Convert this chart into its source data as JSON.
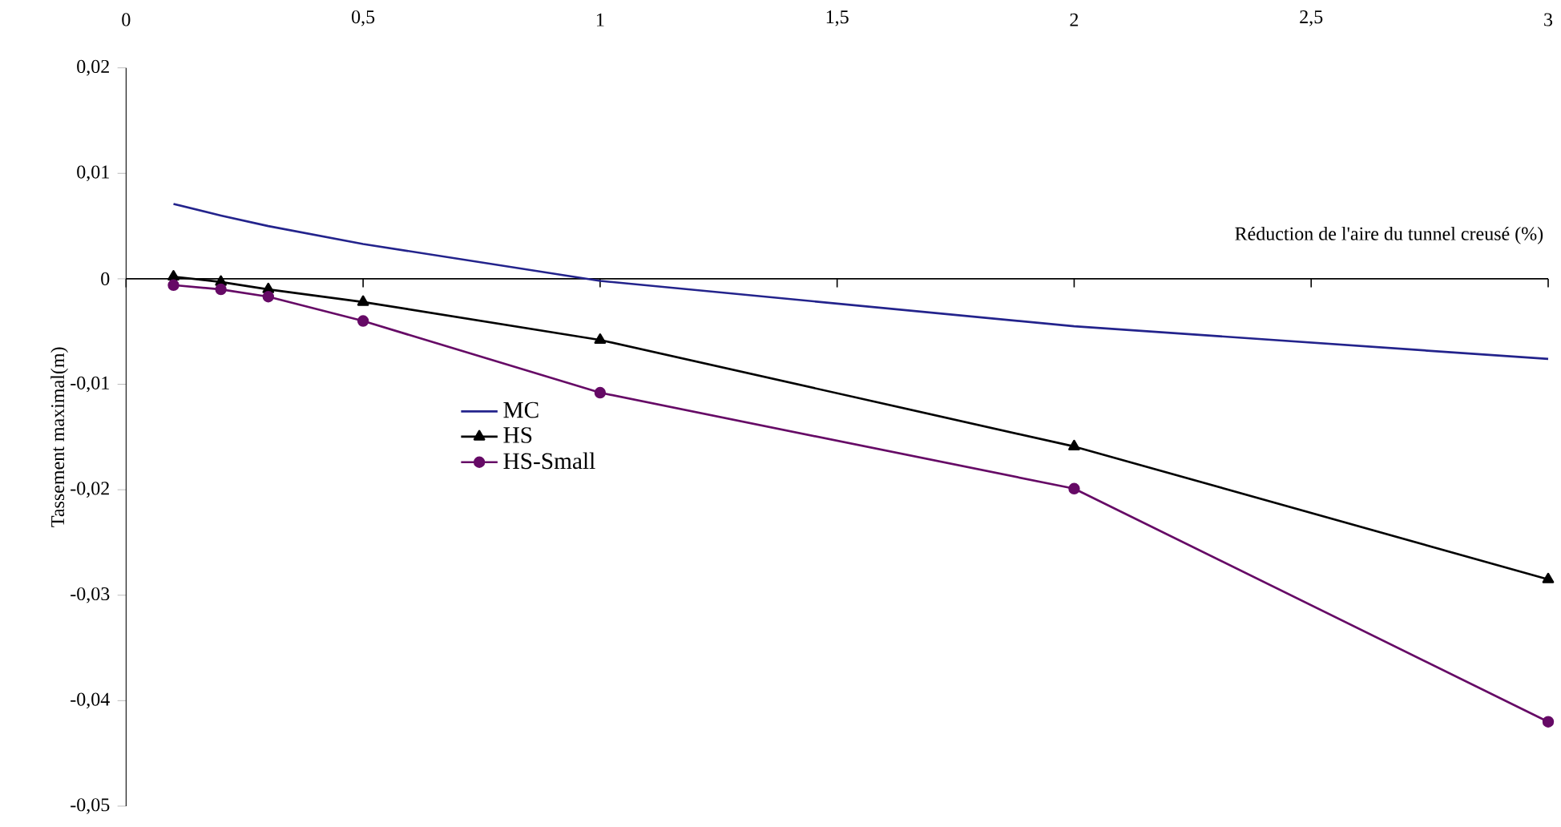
{
  "chart_data": {
    "type": "line",
    "xlabel": "Réduction de l'aire du tunnel creusé (%)",
    "ylabel": "Tassement maximal(m)",
    "xlim": [
      0,
      3
    ],
    "xticks": [
      0,
      {
        "value": 0.5,
        "label": "0,5"
      },
      1,
      {
        "value": 1.5,
        "label": "1,5"
      },
      2,
      {
        "value": 2.5,
        "label": "2,5"
      },
      3
    ],
    "ylim": [
      -0.05,
      0.02
    ],
    "yticks": [
      {
        "value": -0.05,
        "label": "-0,05"
      },
      {
        "value": -0.04,
        "label": "-0,04"
      },
      {
        "value": -0.03,
        "label": "-0,03"
      },
      {
        "value": -0.02,
        "label": "-0,02"
      },
      {
        "value": -0.01,
        "label": "-0,01"
      },
      0,
      {
        "value": 0.01,
        "label": "0,01"
      },
      {
        "value": 0.02,
        "label": "0,02"
      }
    ],
    "x": [
      0.1,
      0.2,
      0.3,
      0.5,
      1,
      2,
      3
    ],
    "series": [
      {
        "name": "MC",
        "color": "#23238c",
        "marker": "none",
        "values": [
          0.0071,
          0.006,
          0.005,
          0.0033,
          -0.0002,
          -0.0045,
          -0.0076
        ]
      },
      {
        "name": "HS",
        "color": "#000000",
        "marker": "triangle",
        "values": [
          0.0002,
          -0.0003,
          -0.001,
          -0.0022,
          -0.0058,
          -0.0159,
          -0.0285
        ]
      },
      {
        "name": "HS-Small",
        "color": "#660a66",
        "marker": "circle",
        "values": [
          -0.0006,
          -0.001,
          -0.0017,
          -0.004,
          -0.0108,
          -0.0199,
          -0.042
        ]
      }
    ],
    "legend": "center left"
  }
}
